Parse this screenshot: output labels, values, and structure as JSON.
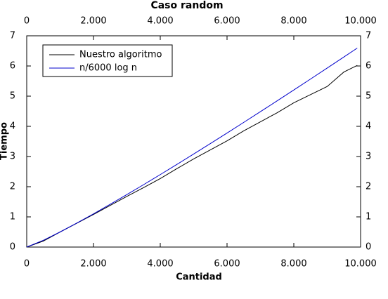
{
  "chart_data": {
    "type": "line",
    "title": "Caso random",
    "xlabel": "Cantidad",
    "ylabel": "Tiempo",
    "x": [
      0,
      500,
      1000,
      1500,
      2000,
      2500,
      3000,
      3500,
      4000,
      4500,
      5000,
      5500,
      6000,
      6500,
      7000,
      7500,
      8000,
      8500,
      9000,
      9500,
      9900
    ],
    "series": [
      {
        "name": "Nuestro algoritmo",
        "color": "#000000",
        "values": [
          0,
          0.2,
          0.5,
          0.79,
          1.08,
          1.38,
          1.68,
          1.97,
          2.27,
          2.6,
          2.92,
          3.22,
          3.52,
          3.85,
          4.15,
          4.45,
          4.78,
          5.05,
          5.32,
          5.8,
          6.02
        ]
      },
      {
        "name": "n/6000 log n",
        "color": "#0000cc",
        "values": [
          0,
          0.225,
          0.5,
          0.794,
          1.1,
          1.416,
          1.739,
          2.067,
          2.401,
          2.74,
          3.082,
          3.429,
          3.778,
          4.131,
          4.486,
          4.844,
          5.204,
          5.567,
          5.931,
          6.298,
          6.593
        ]
      }
    ],
    "xlim": [
      0,
      10000
    ],
    "xticks": [
      0,
      {
        "value": 2000,
        "label": "2.000"
      },
      {
        "value": 4000,
        "label": "4.000"
      },
      {
        "value": 6000,
        "label": "6.000"
      },
      {
        "value": 8000,
        "label": "8.000"
      },
      {
        "value": 10000,
        "label": "10.000"
      }
    ],
    "ylim": [
      0,
      7
    ],
    "yticks": [
      0,
      1,
      2,
      3,
      4,
      5,
      6,
      7
    ],
    "legend": "upper left",
    "grid": false
  }
}
